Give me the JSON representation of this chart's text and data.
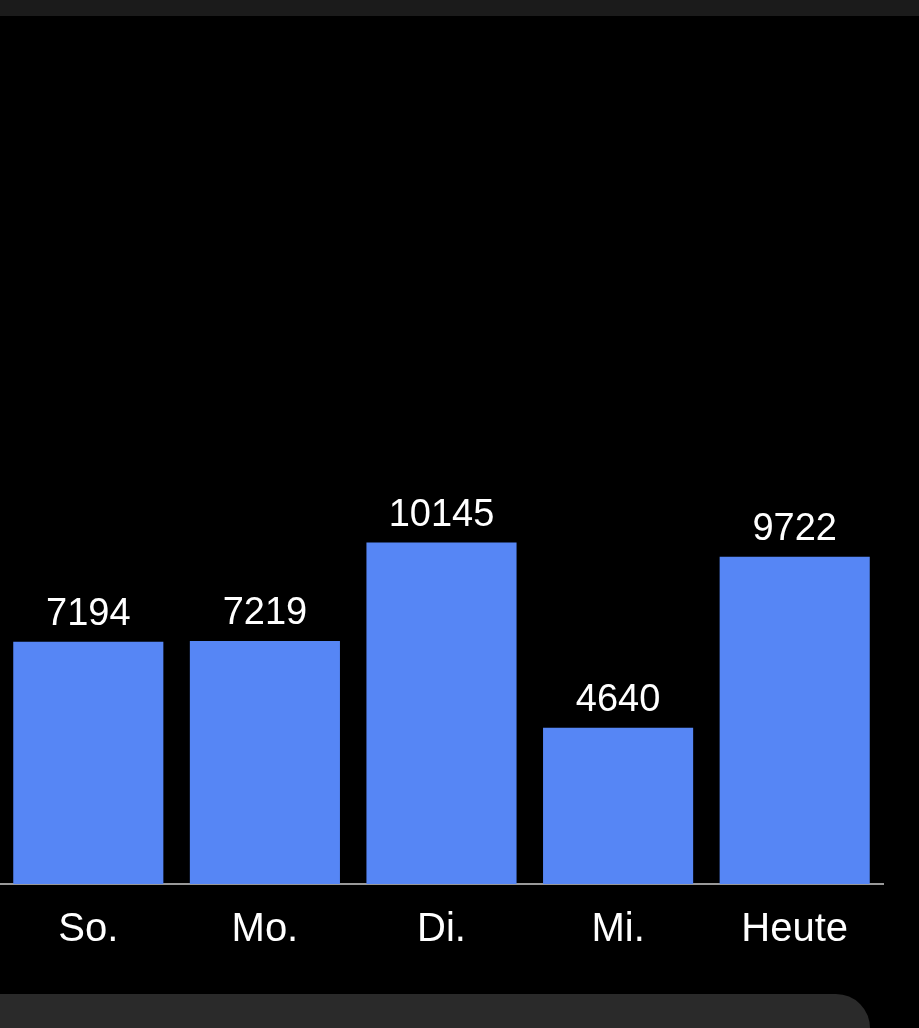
{
  "chart_data": {
    "type": "bar",
    "categories": [
      "So.",
      "Mo.",
      "Di.",
      "Mi.",
      "Heute"
    ],
    "values": [
      7194,
      7219,
      10145,
      4640,
      9722
    ],
    "color": "#5686f5",
    "data_labels": true,
    "tick_labels": "x",
    "grid": false,
    "legend": false
  }
}
